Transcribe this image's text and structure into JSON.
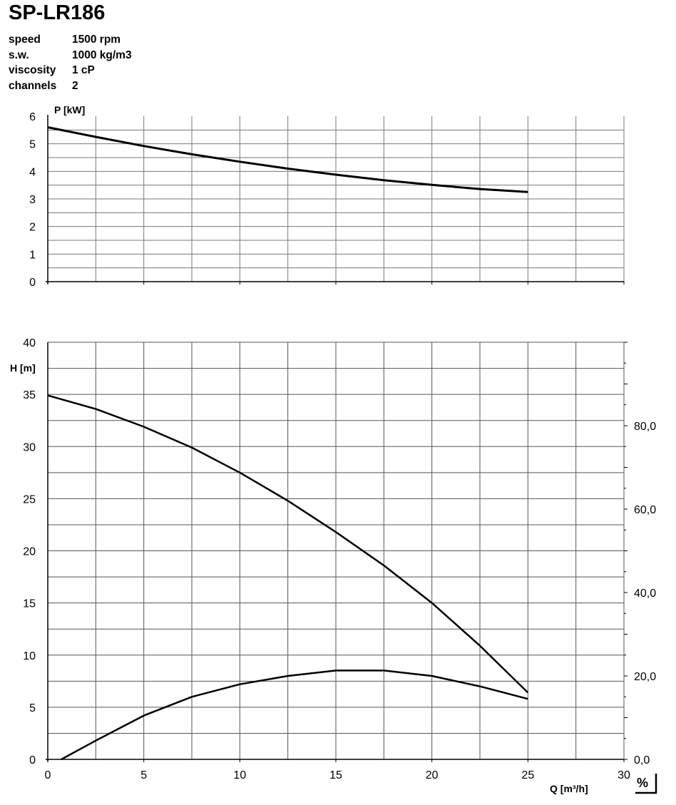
{
  "header": {
    "title": "SP-LR186",
    "specs": [
      {
        "key": "speed",
        "value": "1500 rpm"
      },
      {
        "key": "s.w.",
        "value": "1000 kg/m3"
      },
      {
        "key": "viscosity",
        "value": "1 cP"
      },
      {
        "key": "channels",
        "value": "2"
      }
    ]
  },
  "chart_data": [
    {
      "type": "line",
      "ylabel": "P [kW]",
      "xlim": [
        0,
        30
      ],
      "ylim": [
        0,
        6
      ],
      "y_ticks": [
        "0",
        "1",
        "2",
        "3",
        "4",
        "5",
        "6"
      ],
      "grid": true,
      "series": [
        {
          "x": [
            0,
            2.5,
            5,
            7.5,
            10,
            12.5,
            15,
            17.5,
            20,
            22.5,
            25
          ],
          "values": [
            5.6,
            5.25,
            4.92,
            4.62,
            4.35,
            4.1,
            3.88,
            3.68,
            3.51,
            3.36,
            3.25
          ]
        }
      ]
    },
    {
      "type": "line",
      "ylabel": "H [m]",
      "xlabel": "Q [m³/h]",
      "y2label": "%",
      "xlim": [
        0,
        30
      ],
      "ylim": [
        0,
        40
      ],
      "y2lim": [
        0,
        100
      ],
      "x_ticks": [
        "0",
        "5",
        "10",
        "15",
        "20",
        "25",
        "30"
      ],
      "y_ticks": [
        "0",
        "5",
        "10",
        "15",
        "20",
        "25",
        "30",
        "35",
        "40"
      ],
      "y2_ticks": [
        "0,0",
        "20,0",
        "40,0",
        "60,0",
        "80,0"
      ],
      "grid": true,
      "series": [
        {
          "axis": "left",
          "x": [
            0,
            2.5,
            5,
            7.5,
            10,
            12.5,
            15,
            17.5,
            20,
            22.5,
            25
          ],
          "values": [
            34.9,
            33.6,
            31.9,
            29.9,
            27.5,
            24.8,
            21.8,
            18.6,
            15.0,
            10.9,
            6.4
          ]
        },
        {
          "axis": "right",
          "x": [
            0.7,
            2.5,
            5,
            7.5,
            10,
            12.5,
            15,
            17.5,
            20,
            22.5,
            25
          ],
          "values": [
            0,
            4.5,
            10.5,
            15,
            18,
            20,
            21.3,
            21.3,
            20,
            17.5,
            14.5
          ]
        }
      ]
    }
  ]
}
